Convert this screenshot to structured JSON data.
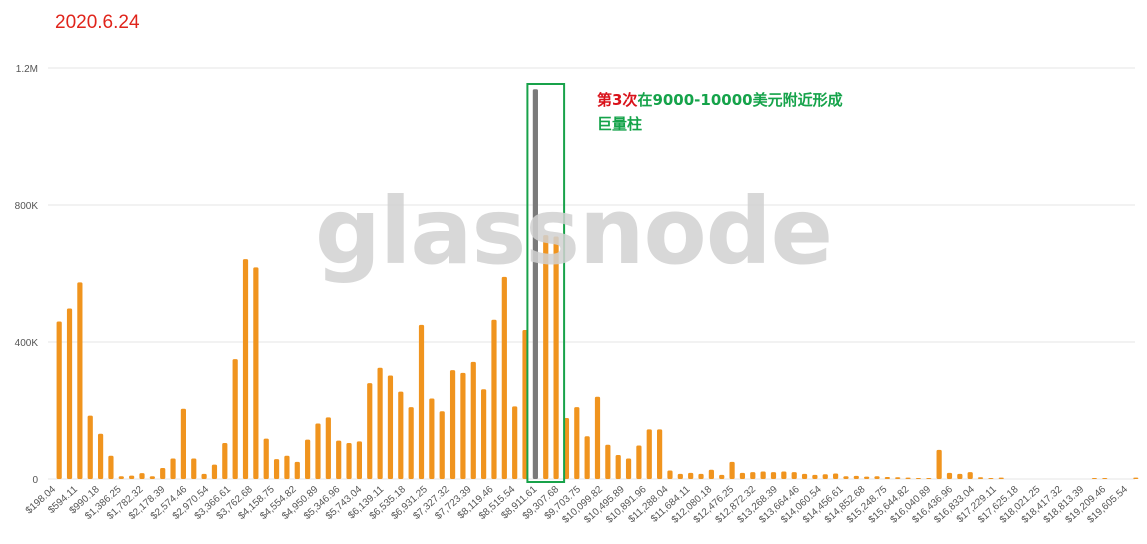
{
  "date_label": "2020.6.24",
  "watermark": "glassnode",
  "annotation": {
    "prefix": "第3次",
    "line1_rest": "在9000-10000美元附近形成",
    "line2": "巨量柱",
    "box_color": "#18a24a"
  },
  "colors": {
    "bar": "#f0941e",
    "highlight_bar": "#7a7a7a",
    "grid": "#e6e6e6"
  },
  "chart_data": {
    "type": "bar",
    "title": "",
    "xlabel": "",
    "ylabel": "",
    "ylim": [
      0,
      1200000
    ],
    "yticks": [
      {
        "value": 0,
        "label": "0"
      },
      {
        "value": 400000,
        "label": "400K"
      },
      {
        "value": 800000,
        "label": "800K"
      },
      {
        "value": 1200000,
        "label": "1.2M"
      }
    ],
    "grid": "horizontal",
    "x_tick_labels": [
      "$198.04",
      "$594.11",
      "$990.18",
      "$1,386.25",
      "$1,782.32",
      "$2,178.39",
      "$2,574.46",
      "$2,970.54",
      "$3,366.61",
      "$3,762.68",
      "$4,158.75",
      "$4,554.82",
      "$4,950.89",
      "$5,346.96",
      "$5,743.04",
      "$6,139.11",
      "$6,535.18",
      "$6,931.25",
      "$7,327.32",
      "$7,723.39",
      "$8,119.46",
      "$8,515.54",
      "$8,911.61",
      "$9,307.68",
      "$9,703.75",
      "$10,099.82",
      "$10,495.89",
      "$10,891.96",
      "$11,288.04",
      "$11,684.11",
      "$12,080.18",
      "$12,476.25",
      "$12,872.32",
      "$13,268.39",
      "$13,664.46",
      "$14,060.54",
      "$14,456.61",
      "$14,852.68",
      "$15,248.75",
      "$15,644.82",
      "$16,040.89",
      "$16,436.96",
      "$16,833.04",
      "$17,229.11",
      "$17,625.18",
      "$18,021.25",
      "$18,417.32",
      "$18,813.39",
      "$19,209.46",
      "$19,605.54"
    ],
    "highlight_index": 46,
    "values": [
      460000,
      498000,
      574000,
      185000,
      132000,
      68000,
      8000,
      10000,
      17000,
      8000,
      32000,
      60000,
      205000,
      60000,
      15000,
      42000,
      105000,
      350000,
      642000,
      618000,
      118000,
      58000,
      68000,
      50000,
      115000,
      162000,
      180000,
      112000,
      105000,
      110000,
      280000,
      325000,
      302000,
      255000,
      210000,
      450000,
      235000,
      198000,
      318000,
      310000,
      342000,
      262000,
      465000,
      590000,
      212000,
      435000,
      1138000,
      712000,
      708000,
      178000,
      210000,
      125000,
      240000,
      100000,
      70000,
      60000,
      98000,
      145000,
      145000,
      25000,
      15000,
      18000,
      15000,
      27000,
      12000,
      50000,
      18000,
      20000,
      22000,
      20000,
      22000,
      20000,
      15000,
      12000,
      14000,
      16000,
      8000,
      9000,
      7000,
      8000,
      6000,
      5000,
      4000,
      3000,
      3000,
      85000,
      18000,
      15000,
      20000,
      5000,
      3000,
      4000,
      0,
      0,
      0,
      0,
      0,
      0,
      0,
      0,
      3000,
      3000,
      0,
      0,
      4000
    ]
  }
}
